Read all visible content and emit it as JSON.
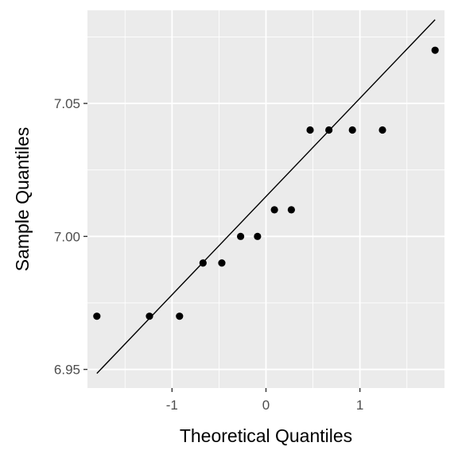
{
  "chart_data": {
    "type": "scatter",
    "title": "",
    "xlabel": "Theoretical Quantiles",
    "ylabel": "Sample Quantiles",
    "xlim": [
      -1.9,
      1.9
    ],
    "ylim": [
      6.943,
      7.085
    ],
    "x_ticks": [
      -1,
      0,
      1
    ],
    "x_tick_labels": [
      "-1",
      "0",
      "1"
    ],
    "x_minor_ticks": [
      -1.5,
      -0.5,
      0.5,
      1.5
    ],
    "y_ticks": [
      6.95,
      7.0,
      7.05
    ],
    "y_tick_labels": [
      "6.95",
      "7.00",
      "7.05"
    ],
    "y_minor_ticks": [
      6.975,
      7.025,
      7.075
    ],
    "grid": true,
    "points": [
      {
        "x": -1.8,
        "y": 6.97
      },
      {
        "x": -1.24,
        "y": 6.97
      },
      {
        "x": -0.92,
        "y": 6.97
      },
      {
        "x": -0.67,
        "y": 6.99
      },
      {
        "x": -0.47,
        "y": 6.99
      },
      {
        "x": -0.27,
        "y": 7.0
      },
      {
        "x": -0.09,
        "y": 7.0
      },
      {
        "x": 0.09,
        "y": 7.01
      },
      {
        "x": 0.27,
        "y": 7.01
      },
      {
        "x": 0.47,
        "y": 7.04
      },
      {
        "x": 0.67,
        "y": 7.04
      },
      {
        "x": 0.92,
        "y": 7.04
      },
      {
        "x": 1.24,
        "y": 7.04
      },
      {
        "x": 1.8,
        "y": 7.07
      }
    ],
    "reference_line": {
      "x": [
        -1.8,
        1.8
      ],
      "y": [
        6.9485,
        7.0815
      ]
    },
    "colors": {
      "panel_background": "#ebebeb",
      "grid": "#ffffff",
      "points": "#000000",
      "line": "#000000"
    }
  }
}
